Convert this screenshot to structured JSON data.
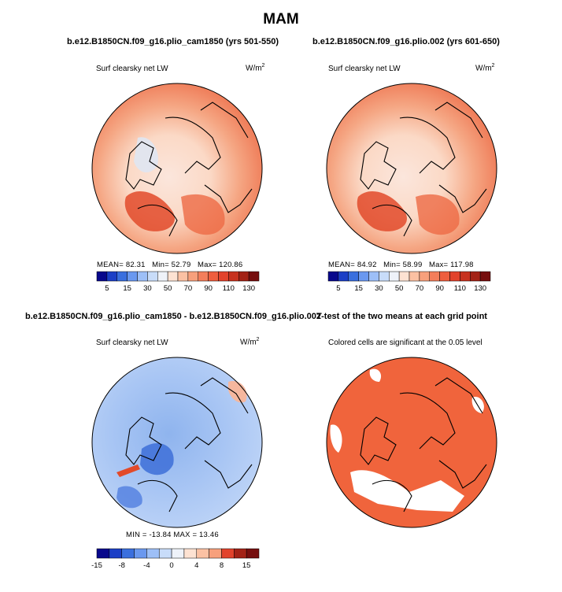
{
  "title": "MAM",
  "case1": "b.e12.B1850CN.f09_g16.plio_cam1850 (yrs 501-550)",
  "case2": "b.e12.B1850CN.f09_g16.plio.002 (yrs 601-650)",
  "diff_title": "b.e12.B1850CN.f09_g16.plio_cam1850 - b.e12.B1850CN.f09_g16.plio.002",
  "ttest_title": "T-test of the two means at each grid point",
  "variable": "Surf clearsky net LW",
  "units": "W/m",
  "units_exp": "2",
  "ttest_subtitle": "Colored cells are significant at the 0.05 level",
  "stats1": {
    "label_mean": "MEAN=",
    "mean": "82.31",
    "label_min": "Min=",
    "min": "52.79",
    "label_max": "Max=",
    "max": "120.86"
  },
  "stats2": {
    "label_mean": "MEAN=",
    "mean": "84.92",
    "label_min": "Min=",
    "min": "58.99",
    "label_max": "Max=",
    "max": "117.98"
  },
  "stats3": {
    "text": "MIN = -13.84  MAX =  13.46"
  },
  "chart_data": [
    {
      "type": "heatmap",
      "title": "b.e12.B1850CN.f09_g16.plio_cam1850 (yrs 501-550)",
      "subtitle": "Surf clearsky net LW",
      "units": "W/m2",
      "colorbar": {
        "tick_labels": [
          "5",
          "15",
          "30",
          "50",
          "70",
          "90",
          "110",
          "130"
        ],
        "colors": [
          "#08088c",
          "#1c3fc6",
          "#3a6fde",
          "#6a98ef",
          "#9dbff7",
          "#c8dcf9",
          "#eef2f9",
          "#fde2d2",
          "#fbc1a3",
          "#f7a07c",
          "#f37e5b",
          "#ee5e3e",
          "#e2432c",
          "#c7321f",
          "#a32216",
          "#760e0e"
        ]
      },
      "stats": {
        "mean": 82.31,
        "min": 52.79,
        "max": 120.86
      }
    },
    {
      "type": "heatmap",
      "title": "b.e12.B1850CN.f09_g16.plio.002 (yrs 601-650)",
      "subtitle": "Surf clearsky net LW",
      "units": "W/m2",
      "colorbar": {
        "tick_labels": [
          "5",
          "15",
          "30",
          "50",
          "70",
          "90",
          "110",
          "130"
        ],
        "colors": [
          "#08088c",
          "#1c3fc6",
          "#3a6fde",
          "#6a98ef",
          "#9dbff7",
          "#c8dcf9",
          "#eef2f9",
          "#fde2d2",
          "#fbc1a3",
          "#f7a07c",
          "#f37e5b",
          "#ee5e3e",
          "#e2432c",
          "#c7321f",
          "#a32216",
          "#760e0e"
        ]
      },
      "stats": {
        "mean": 84.92,
        "min": 58.99,
        "max": 117.98
      }
    },
    {
      "type": "heatmap",
      "title": "b.e12.B1850CN.f09_g16.plio_cam1850 - b.e12.B1850CN.f09_g16.plio.002",
      "subtitle": "Surf clearsky net LW",
      "units": "W/m2",
      "colorbar": {
        "tick_labels": [
          "-15",
          "-8",
          "-4",
          "0",
          "4",
          "8",
          "15"
        ],
        "colors": [
          "#08088c",
          "#1c3fc6",
          "#3a6fde",
          "#6a98ef",
          "#9dbff7",
          "#c8dcf9",
          "#eef2f9",
          "#fde2d2",
          "#fbc1a3",
          "#f7a07c",
          "#e2432c",
          "#a32216",
          "#760e0e"
        ]
      },
      "stats": {
        "min": -13.84,
        "max": 13.46
      }
    },
    {
      "type": "heatmap",
      "title": "T-test of the two means at each grid point",
      "subtitle": "Colored cells are significant at the 0.05 level",
      "significant_color": "#f0643c"
    }
  ]
}
